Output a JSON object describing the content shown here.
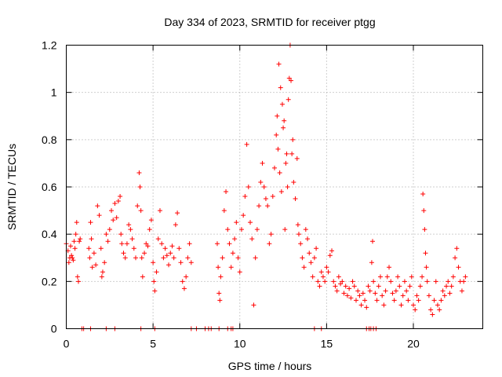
{
  "chart_data": {
    "type": "scatter",
    "title": "Day 334 of 2023, SRMTID for receiver ptgg",
    "xlabel": "GPS time / hours",
    "ylabel": "SRMTID / TECUs",
    "xlim": [
      0,
      24
    ],
    "ylim": [
      0,
      1.2
    ],
    "xticks": [
      0,
      5,
      10,
      15,
      20
    ],
    "yticks": [
      0,
      0.2,
      0.4,
      0.6,
      0.8,
      1.0,
      1.2
    ],
    "ytick_labels": [
      "0",
      "0.2",
      "0.4",
      "0.6",
      "0.8",
      "1",
      "1.2"
    ],
    "grid": true,
    "marker": "+",
    "color": "#ff0000",
    "series": [
      {
        "name": "SRMTID",
        "points": [
          [
            0.0,
            0.36
          ],
          [
            0.1,
            0.33
          ],
          [
            0.15,
            0.28
          ],
          [
            0.2,
            0.3
          ],
          [
            0.25,
            0.35
          ],
          [
            0.3,
            0.31
          ],
          [
            0.35,
            0.3
          ],
          [
            0.4,
            0.29
          ],
          [
            0.45,
            0.37
          ],
          [
            0.5,
            0.34
          ],
          [
            0.55,
            0.4
          ],
          [
            0.6,
            0.45
          ],
          [
            0.65,
            0.22
          ],
          [
            0.7,
            0.2
          ],
          [
            0.75,
            0.37
          ],
          [
            0.8,
            0.38
          ],
          [
            1.3,
            0.34
          ],
          [
            1.35,
            0.3
          ],
          [
            1.4,
            0.45
          ],
          [
            1.45,
            0.38
          ],
          [
            1.5,
            0.26
          ],
          [
            1.6,
            0.32
          ],
          [
            1.7,
            0.27
          ],
          [
            1.8,
            0.52
          ],
          [
            1.9,
            0.48
          ],
          [
            2.0,
            0.34
          ],
          [
            2.05,
            0.22
          ],
          [
            2.1,
            0.24
          ],
          [
            2.2,
            0.28
          ],
          [
            2.3,
            0.4
          ],
          [
            2.4,
            0.37
          ],
          [
            2.5,
            0.42
          ],
          [
            2.6,
            0.5
          ],
          [
            2.7,
            0.46
          ],
          [
            2.8,
            0.53
          ],
          [
            2.9,
            0.47
          ],
          [
            3.0,
            0.54
          ],
          [
            3.1,
            0.56
          ],
          [
            3.15,
            0.4
          ],
          [
            3.2,
            0.36
          ],
          [
            3.3,
            0.32
          ],
          [
            3.4,
            0.3
          ],
          [
            3.5,
            0.36
          ],
          [
            3.6,
            0.44
          ],
          [
            3.7,
            0.42
          ],
          [
            3.8,
            0.38
          ],
          [
            3.9,
            0.34
          ],
          [
            4.0,
            0.3
          ],
          [
            4.1,
            0.52
          ],
          [
            4.2,
            0.66
          ],
          [
            4.25,
            0.6
          ],
          [
            4.3,
            0.5
          ],
          [
            4.35,
            0.3
          ],
          [
            4.4,
            0.22
          ],
          [
            4.5,
            0.32
          ],
          [
            4.6,
            0.36
          ],
          [
            4.7,
            0.35
          ],
          [
            4.8,
            0.42
          ],
          [
            4.9,
            0.46
          ],
          [
            5.0,
            0.28
          ],
          [
            5.05,
            0.2
          ],
          [
            5.1,
            0.16
          ],
          [
            5.2,
            0.24
          ],
          [
            5.3,
            0.38
          ],
          [
            5.4,
            0.5
          ],
          [
            5.5,
            0.36
          ],
          [
            5.6,
            0.3
          ],
          [
            5.7,
            0.34
          ],
          [
            5.8,
            0.31
          ],
          [
            5.9,
            0.27
          ],
          [
            6.0,
            0.32
          ],
          [
            6.1,
            0.35
          ],
          [
            6.2,
            0.3
          ],
          [
            6.3,
            0.44
          ],
          [
            6.4,
            0.49
          ],
          [
            6.5,
            0.34
          ],
          [
            6.6,
            0.28
          ],
          [
            6.7,
            0.2
          ],
          [
            6.8,
            0.17
          ],
          [
            6.9,
            0.22
          ],
          [
            7.0,
            0.3
          ],
          [
            7.1,
            0.36
          ],
          [
            7.2,
            0.28
          ],
          [
            8.7,
            0.36
          ],
          [
            8.75,
            0.26
          ],
          [
            8.8,
            0.15
          ],
          [
            8.85,
            0.12
          ],
          [
            8.9,
            0.22
          ],
          [
            9.0,
            0.3
          ],
          [
            9.1,
            0.5
          ],
          [
            9.2,
            0.58
          ],
          [
            9.3,
            0.42
          ],
          [
            9.4,
            0.36
          ],
          [
            9.5,
            0.26
          ],
          [
            9.6,
            0.32
          ],
          [
            9.7,
            0.38
          ],
          [
            9.8,
            0.45
          ],
          [
            9.9,
            0.3
          ],
          [
            10.0,
            0.24
          ],
          [
            10.1,
            0.42
          ],
          [
            10.2,
            0.48
          ],
          [
            10.3,
            0.56
          ],
          [
            10.4,
            0.78
          ],
          [
            10.5,
            0.6
          ],
          [
            10.6,
            0.45
          ],
          [
            10.7,
            0.38
          ],
          [
            10.8,
            0.1
          ],
          [
            10.9,
            0.3
          ],
          [
            11.0,
            0.42
          ],
          [
            11.1,
            0.52
          ],
          [
            11.2,
            0.62
          ],
          [
            11.3,
            0.7
          ],
          [
            11.4,
            0.6
          ],
          [
            11.5,
            0.55
          ],
          [
            11.6,
            0.52
          ],
          [
            11.7,
            0.36
          ],
          [
            11.8,
            0.4
          ],
          [
            11.9,
            0.56
          ],
          [
            12.0,
            0.68
          ],
          [
            12.1,
            0.82
          ],
          [
            12.15,
            0.9
          ],
          [
            12.2,
            0.76
          ],
          [
            12.25,
            1.12
          ],
          [
            12.3,
            0.66
          ],
          [
            12.35,
            1.02
          ],
          [
            12.4,
            0.58
          ],
          [
            12.45,
            0.95
          ],
          [
            12.5,
            0.85
          ],
          [
            12.55,
            0.88
          ],
          [
            12.6,
            0.42
          ],
          [
            12.65,
            0.7
          ],
          [
            12.7,
            0.74
          ],
          [
            12.75,
            0.6
          ],
          [
            12.8,
            0.97
          ],
          [
            12.85,
            1.06
          ],
          [
            12.9,
            1.2
          ],
          [
            12.95,
            1.05
          ],
          [
            13.0,
            0.74
          ],
          [
            13.05,
            0.8
          ],
          [
            13.1,
            0.62
          ],
          [
            13.2,
            0.55
          ],
          [
            13.3,
            0.72
          ],
          [
            13.35,
            0.44
          ],
          [
            13.4,
            0.4
          ],
          [
            13.5,
            0.36
          ],
          [
            13.6,
            0.3
          ],
          [
            13.7,
            0.26
          ],
          [
            13.8,
            0.42
          ],
          [
            13.9,
            0.38
          ],
          [
            14.0,
            0.32
          ],
          [
            14.1,
            0.28
          ],
          [
            14.2,
            0.22
          ],
          [
            14.3,
            0.3
          ],
          [
            14.4,
            0.34
          ],
          [
            14.5,
            0.2
          ],
          [
            14.6,
            0.18
          ],
          [
            14.7,
            0.24
          ],
          [
            14.8,
            0.22
          ],
          [
            14.9,
            0.2
          ],
          [
            15.0,
            0.26
          ],
          [
            15.1,
            0.24
          ],
          [
            15.2,
            0.31
          ],
          [
            15.3,
            0.33
          ],
          [
            15.4,
            0.2
          ],
          [
            15.5,
            0.18
          ],
          [
            15.6,
            0.16
          ],
          [
            15.7,
            0.22
          ],
          [
            15.8,
            0.19
          ],
          [
            15.9,
            0.2
          ],
          [
            16.0,
            0.15
          ],
          [
            16.1,
            0.18
          ],
          [
            16.2,
            0.14
          ],
          [
            16.3,
            0.17
          ],
          [
            16.4,
            0.13
          ],
          [
            16.5,
            0.2
          ],
          [
            16.6,
            0.18
          ],
          [
            16.7,
            0.12
          ],
          [
            16.8,
            0.16
          ],
          [
            16.9,
            0.14
          ],
          [
            17.0,
            0.1
          ],
          [
            17.1,
            0.15
          ],
          [
            17.2,
            0.12
          ],
          [
            17.3,
            0.09
          ],
          [
            17.4,
            0.18
          ],
          [
            17.5,
            0.16
          ],
          [
            17.6,
            0.28
          ],
          [
            17.65,
            0.37
          ],
          [
            17.7,
            0.2
          ],
          [
            17.8,
            0.15
          ],
          [
            17.9,
            0.12
          ],
          [
            18.0,
            0.18
          ],
          [
            18.1,
            0.22
          ],
          [
            18.2,
            0.14
          ],
          [
            18.3,
            0.1
          ],
          [
            18.4,
            0.16
          ],
          [
            18.5,
            0.22
          ],
          [
            18.6,
            0.26
          ],
          [
            18.7,
            0.2
          ],
          [
            18.8,
            0.15
          ],
          [
            18.9,
            0.12
          ],
          [
            19.0,
            0.16
          ],
          [
            19.1,
            0.22
          ],
          [
            19.2,
            0.18
          ],
          [
            19.3,
            0.1
          ],
          [
            19.4,
            0.14
          ],
          [
            19.5,
            0.2
          ],
          [
            19.6,
            0.16
          ],
          [
            19.7,
            0.12
          ],
          [
            19.8,
            0.18
          ],
          [
            19.9,
            0.22
          ],
          [
            20.0,
            0.1
          ],
          [
            20.1,
            0.08
          ],
          [
            20.2,
            0.14
          ],
          [
            20.3,
            0.12
          ],
          [
            20.4,
            0.18
          ],
          [
            20.5,
            0.22
          ],
          [
            20.55,
            0.57
          ],
          [
            20.6,
            0.5
          ],
          [
            20.65,
            0.42
          ],
          [
            20.7,
            0.32
          ],
          [
            20.75,
            0.26
          ],
          [
            20.8,
            0.2
          ],
          [
            20.9,
            0.14
          ],
          [
            21.0,
            0.08
          ],
          [
            21.1,
            0.06
          ],
          [
            21.2,
            0.12
          ],
          [
            21.3,
            0.2
          ],
          [
            21.4,
            0.1
          ],
          [
            21.5,
            0.08
          ],
          [
            21.6,
            0.12
          ],
          [
            21.7,
            0.16
          ],
          [
            21.8,
            0.14
          ],
          [
            21.9,
            0.18
          ],
          [
            22.0,
            0.2
          ],
          [
            22.1,
            0.15
          ],
          [
            22.2,
            0.18
          ],
          [
            22.3,
            0.22
          ],
          [
            22.4,
            0.3
          ],
          [
            22.5,
            0.34
          ],
          [
            22.6,
            0.26
          ],
          [
            22.7,
            0.2
          ],
          [
            22.8,
            0.16
          ],
          [
            22.9,
            0.2
          ],
          [
            23.0,
            0.22
          ],
          [
            0.9,
            0.0
          ],
          [
            1.0,
            0.0
          ],
          [
            1.4,
            0.0
          ],
          [
            2.3,
            0.0
          ],
          [
            2.8,
            0.0
          ],
          [
            4.3,
            0.0
          ],
          [
            5.1,
            0.0
          ],
          [
            7.2,
            0.0
          ],
          [
            7.5,
            0.0
          ],
          [
            8.0,
            0.0
          ],
          [
            8.2,
            0.0
          ],
          [
            8.35,
            0.0
          ],
          [
            8.8,
            0.0
          ],
          [
            9.3,
            0.0
          ],
          [
            9.5,
            0.0
          ],
          [
            9.6,
            0.0
          ],
          [
            14.3,
            0.0
          ],
          [
            14.7,
            0.0
          ],
          [
            17.3,
            0.0
          ],
          [
            17.45,
            0.0
          ],
          [
            17.55,
            0.0
          ],
          [
            17.7,
            0.0
          ],
          [
            17.85,
            0.0
          ]
        ]
      }
    ]
  }
}
